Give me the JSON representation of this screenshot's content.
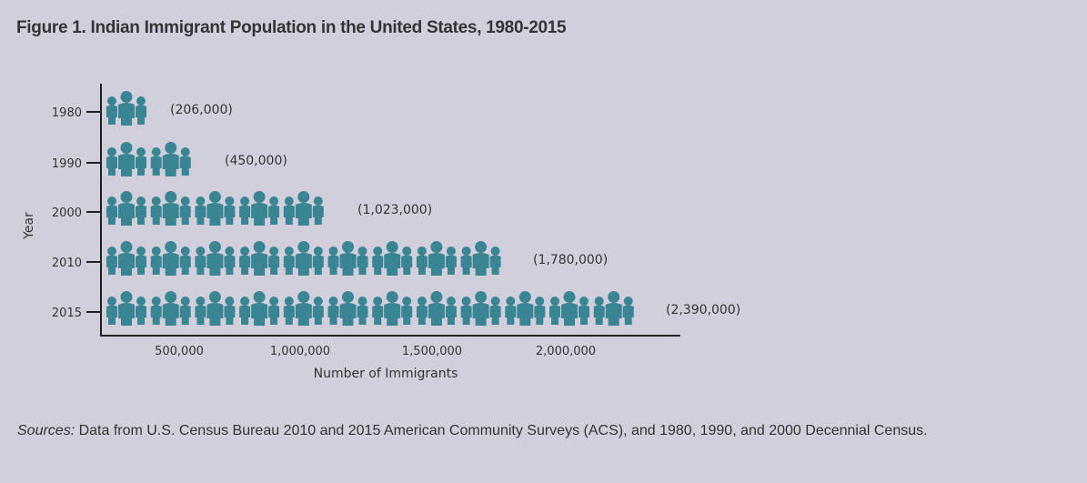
{
  "title": "Figure 1. Indian Immigrant Population in the United States, 1980-2015",
  "sources": {
    "label": "Sources:",
    "text": " Data from U.S. Census Bureau 2010 and 2015 American Community Surveys (ACS), and 1980, 1990, and 2000 Decennial Census."
  },
  "icon_color": "#3a8593",
  "chart_data": {
    "type": "bar",
    "style": "pictograph",
    "orientation": "horizontal",
    "title": "Figure 1. Indian Immigrant Population in the United States, 1980-2015",
    "xlabel": "Number of Immigrants",
    "ylabel": "Year",
    "categories": [
      "1980",
      "1990",
      "2000",
      "2010",
      "2015"
    ],
    "values": [
      206000,
      450000,
      1023000,
      1780000,
      2390000
    ],
    "value_labels": [
      "(206,000)",
      "(450,000)",
      "(1,023,000)",
      "(1,780,000)",
      "(2,390,000)"
    ],
    "icon_groups": [
      1,
      2,
      5,
      9,
      12
    ],
    "units_per_icon": 200000,
    "xticks": [
      500000,
      1000000,
      1500000,
      2000000
    ],
    "xtick_labels": [
      "500,000",
      "1,000,000",
      "1,500,000",
      "2,000,000"
    ],
    "grid": false,
    "legend": "none"
  }
}
